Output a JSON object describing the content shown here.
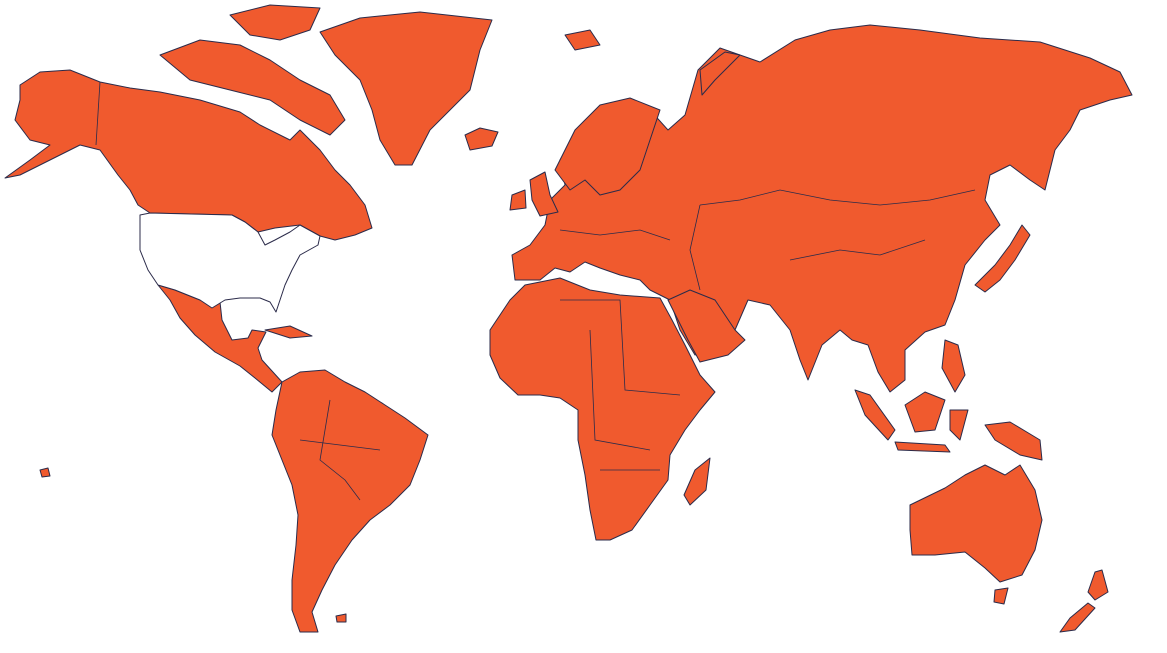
{
  "map": {
    "projection": "miller",
    "fill_color": "#F05A2E",
    "unfilled_color": "#FFFFFF",
    "border_color": "#2B2B4A",
    "background_color": "#FFFFFF"
  }
}
